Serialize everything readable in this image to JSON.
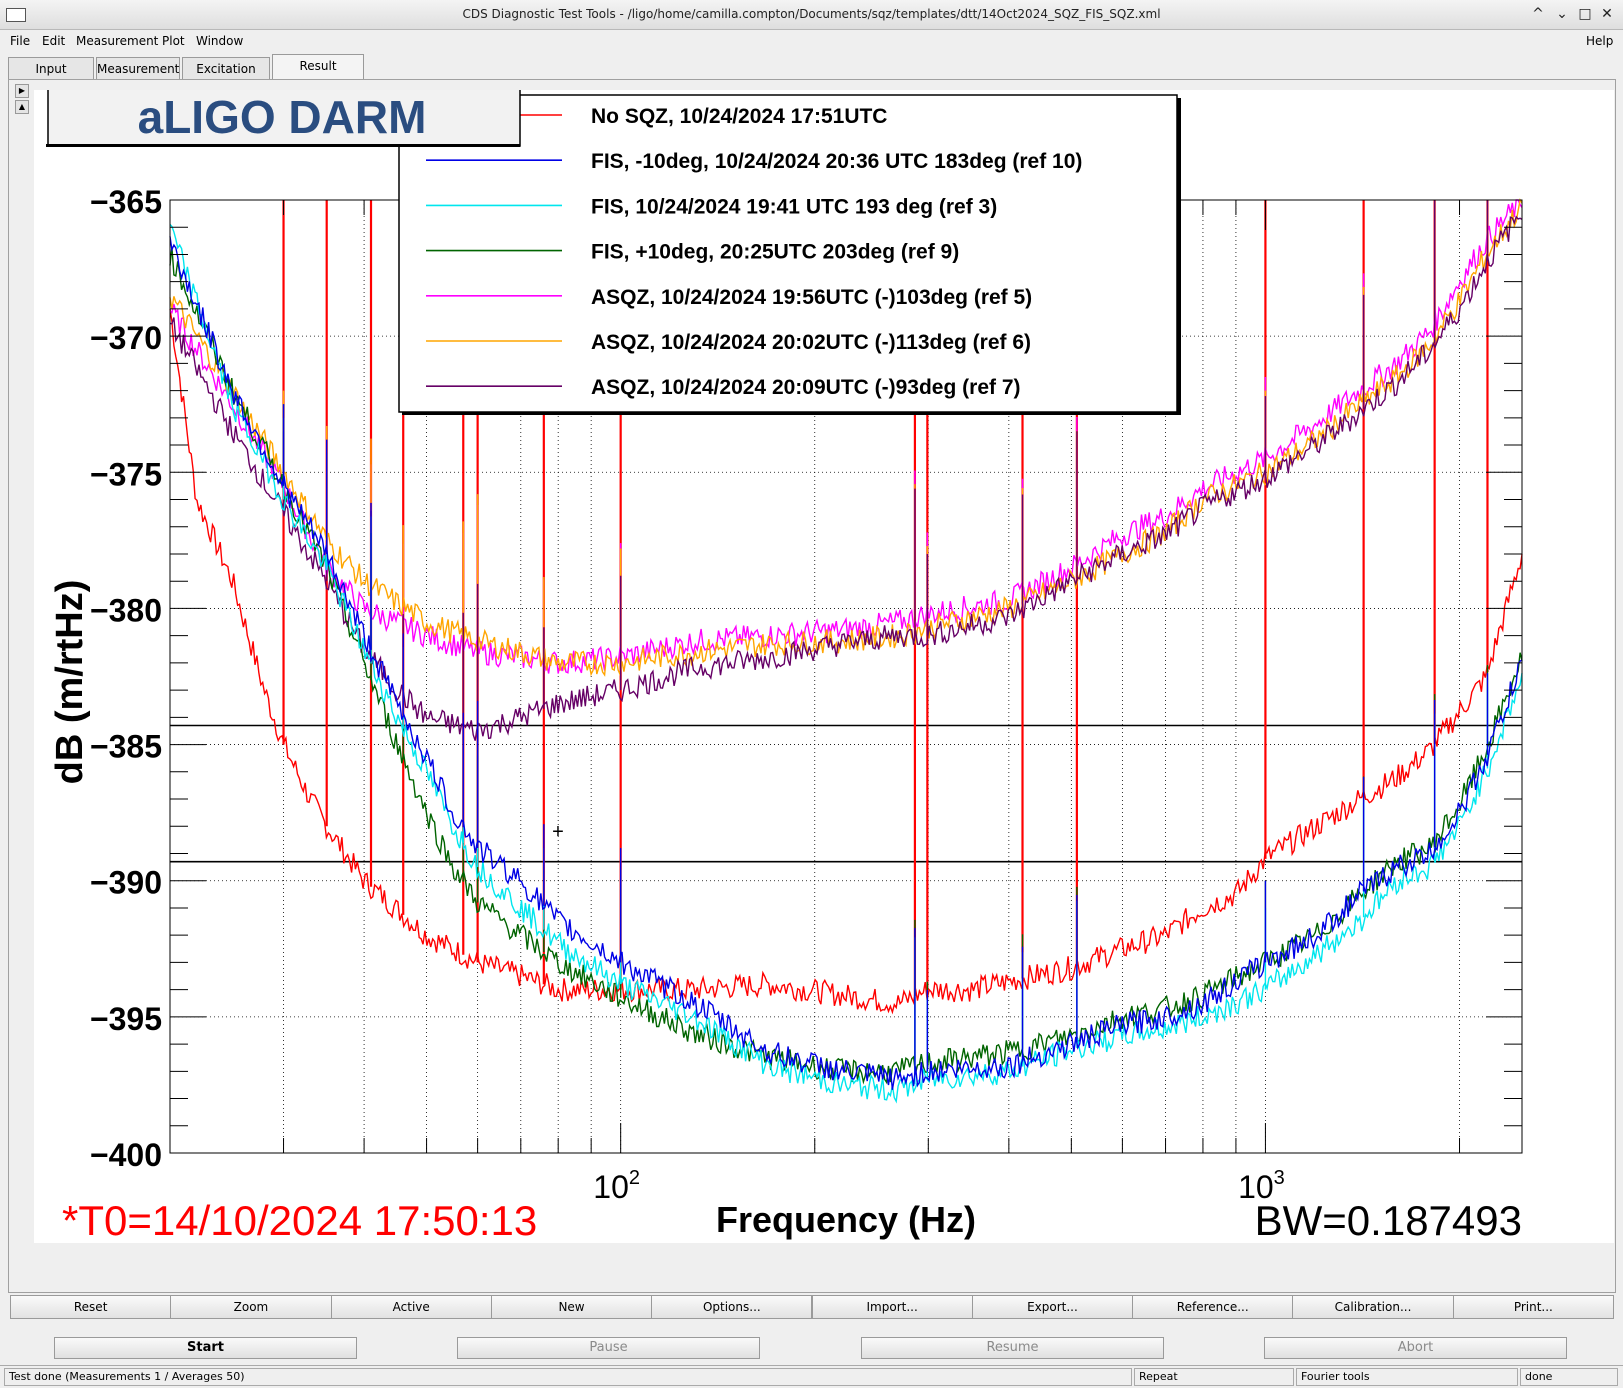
{
  "window": {
    "title": "CDS Diagnostic Test Tools - /ligo/home/camilla.compton/Documents/sqz/templates/dtt/14Oct2024_SQZ_FIS_SQZ.xml",
    "controls": [
      "^",
      "⌄",
      "□",
      "✕"
    ]
  },
  "menu": {
    "file": "File",
    "edit": "Edit",
    "measurement": "Measurement",
    "plot": "Plot",
    "window": "Window",
    "help": "Help"
  },
  "tabs": [
    "Input",
    "Measurement",
    "Excitation",
    "Result"
  ],
  "toolbar": [
    "Reset",
    "Zoom",
    "Active",
    "New",
    "Options...",
    "Import...",
    "Export...",
    "Reference...",
    "Calibration...",
    "Print..."
  ],
  "controls": {
    "start": "Start",
    "pause": "Pause",
    "resume": "Resume",
    "abort": "Abort"
  },
  "status": {
    "message": "Test done (Measurements 1 / Averages 50)",
    "repeat": "Repeat",
    "fourier": "Fourier tools",
    "state": "done"
  },
  "plot": {
    "header": "aLIGO DARM",
    "t0": "*T0=14/10/2024 17:50:13",
    "bw": "BW=0.187493",
    "xlabel": "Frequency (Hz)",
    "ylabel": "dB (m/rtHz)",
    "xtick_base": "10",
    "xtick_exps": [
      "2",
      "3"
    ],
    "ytick_labels": [
      "−365",
      "−370",
      "−375",
      "−380",
      "−385",
      "−390",
      "−395",
      "−400"
    ],
    "cursor_symbol": "+"
  },
  "chart_data": {
    "type": "line",
    "xscale": "log",
    "xlim": [
      20,
      2500
    ],
    "ylim": [
      -400,
      -365
    ],
    "grid": true,
    "legend_position": "top",
    "hlines": [
      -384.3,
      -389.3
    ],
    "series": [
      {
        "name": "No SQZ, 10/24/2024 17:51UTC",
        "color": "#ff0000",
        "points": [
          [
            20,
            -369
          ],
          [
            22,
            -376
          ],
          [
            25,
            -379
          ],
          [
            28,
            -383
          ],
          [
            30,
            -385
          ],
          [
            33,
            -387
          ],
          [
            35,
            -388
          ],
          [
            40,
            -390
          ],
          [
            50,
            -392
          ],
          [
            60,
            -393
          ],
          [
            70,
            -393.5
          ],
          [
            80,
            -394
          ],
          [
            100,
            -394
          ],
          [
            130,
            -394
          ],
          [
            170,
            -393.8
          ],
          [
            220,
            -394.2
          ],
          [
            270,
            -394.5
          ],
          [
            300,
            -394
          ],
          [
            350,
            -394
          ],
          [
            400,
            -393.7
          ],
          [
            500,
            -393.2
          ],
          [
            600,
            -392.5
          ],
          [
            700,
            -392
          ],
          [
            800,
            -391
          ],
          [
            900,
            -390.5
          ],
          [
            1000,
            -389.2
          ],
          [
            1200,
            -388
          ],
          [
            1400,
            -387
          ],
          [
            1600,
            -386.2
          ],
          [
            1800,
            -385.2
          ],
          [
            2000,
            -383.8
          ],
          [
            2200,
            -382.5
          ],
          [
            2500,
            -378
          ]
        ]
      },
      {
        "name": "FIS, -10deg, 10/24/2024 20:36 UTC 183deg (ref 10)",
        "color": "#0000e6",
        "points": [
          [
            20,
            -366.5
          ],
          [
            25,
            -372
          ],
          [
            30,
            -375.5
          ],
          [
            35,
            -378
          ],
          [
            40,
            -381
          ],
          [
            45,
            -383.5
          ],
          [
            50,
            -385.5
          ],
          [
            55,
            -387.5
          ],
          [
            60,
            -388.8
          ],
          [
            70,
            -390
          ],
          [
            80,
            -391.5
          ],
          [
            100,
            -393
          ],
          [
            130,
            -394.5
          ],
          [
            170,
            -396.3
          ],
          [
            220,
            -397
          ],
          [
            270,
            -397.3
          ],
          [
            300,
            -397
          ],
          [
            400,
            -396.8
          ],
          [
            500,
            -396
          ],
          [
            600,
            -395.3
          ],
          [
            700,
            -395
          ],
          [
            800,
            -394.5
          ],
          [
            1000,
            -393
          ],
          [
            1200,
            -392
          ],
          [
            1400,
            -390.5
          ],
          [
            1600,
            -389.5
          ],
          [
            1800,
            -389
          ],
          [
            2000,
            -387.5
          ],
          [
            2200,
            -385.5
          ],
          [
            2500,
            -382
          ]
        ]
      },
      {
        "name": "FIS, 10/24/2024 19:41 UTC 193 deg (ref 3)",
        "color": "#00e6ee",
        "points": [
          [
            20,
            -366
          ],
          [
            25,
            -372.5
          ],
          [
            30,
            -376
          ],
          [
            35,
            -378.5
          ],
          [
            40,
            -381.5
          ],
          [
            45,
            -384
          ],
          [
            50,
            -386
          ],
          [
            55,
            -388
          ],
          [
            60,
            -389.5
          ],
          [
            70,
            -391
          ],
          [
            80,
            -392.3
          ],
          [
            100,
            -393.8
          ],
          [
            130,
            -395
          ],
          [
            170,
            -396.8
          ],
          [
            220,
            -397.5
          ],
          [
            270,
            -397.7
          ],
          [
            300,
            -397.3
          ],
          [
            400,
            -397
          ],
          [
            500,
            -396.2
          ],
          [
            600,
            -395.7
          ],
          [
            700,
            -395.4
          ],
          [
            800,
            -395
          ],
          [
            1000,
            -394
          ],
          [
            1200,
            -392.7
          ],
          [
            1400,
            -391.5
          ],
          [
            1600,
            -390
          ],
          [
            1800,
            -389.5
          ],
          [
            2000,
            -388
          ],
          [
            2200,
            -386
          ],
          [
            2500,
            -382.5
          ]
        ]
      },
      {
        "name": "FIS, +10deg, 20:25UTC 203deg  (ref 9)",
        "color": "#006400",
        "points": [
          [
            20,
            -367
          ],
          [
            25,
            -372
          ],
          [
            30,
            -375.5
          ],
          [
            35,
            -378.5
          ],
          [
            40,
            -382
          ],
          [
            45,
            -385
          ],
          [
            50,
            -387.5
          ],
          [
            55,
            -389.5
          ],
          [
            60,
            -390.8
          ],
          [
            70,
            -392
          ],
          [
            80,
            -393
          ],
          [
            100,
            -394.3
          ],
          [
            130,
            -395.6
          ],
          [
            170,
            -396.5
          ],
          [
            220,
            -397
          ],
          [
            270,
            -397
          ],
          [
            300,
            -396.7
          ],
          [
            400,
            -396.3
          ],
          [
            500,
            -395.7
          ],
          [
            600,
            -395
          ],
          [
            700,
            -394.7
          ],
          [
            800,
            -394.2
          ],
          [
            1000,
            -393
          ],
          [
            1200,
            -392
          ],
          [
            1400,
            -390.5
          ],
          [
            1600,
            -389.3
          ],
          [
            1800,
            -388.8
          ],
          [
            2000,
            -387.2
          ],
          [
            2200,
            -385.2
          ],
          [
            2500,
            -381.8
          ]
        ]
      },
      {
        "name": "ASQZ, 10/24/2024 19:56UTC (-)103deg (ref 5)",
        "color": "#ff00ff",
        "points": [
          [
            20,
            -369
          ],
          [
            25,
            -372.5
          ],
          [
            30,
            -375.5
          ],
          [
            35,
            -378.5
          ],
          [
            40,
            -380
          ],
          [
            50,
            -381
          ],
          [
            60,
            -381.6
          ],
          [
            70,
            -381.8
          ],
          [
            80,
            -382
          ],
          [
            100,
            -381.8
          ],
          [
            130,
            -381.2
          ],
          [
            170,
            -381
          ],
          [
            220,
            -380.8
          ],
          [
            270,
            -380.5
          ],
          [
            300,
            -380.2
          ],
          [
            400,
            -379.7
          ],
          [
            500,
            -378.5
          ],
          [
            600,
            -377.3
          ],
          [
            700,
            -376.6
          ],
          [
            800,
            -375.6
          ],
          [
            1000,
            -374.5
          ],
          [
            1200,
            -373.2
          ],
          [
            1400,
            -372
          ],
          [
            1600,
            -371
          ],
          [
            1800,
            -369.8
          ],
          [
            2000,
            -368
          ],
          [
            2200,
            -366.5
          ],
          [
            2500,
            -365
          ]
        ]
      },
      {
        "name": "ASQZ, 10/24/2024 20:02UTC (-)113deg (ref 6)",
        "color": "#ffa500",
        "points": [
          [
            20,
            -368.5
          ],
          [
            25,
            -372
          ],
          [
            30,
            -375
          ],
          [
            35,
            -377.5
          ],
          [
            40,
            -379
          ],
          [
            50,
            -380.5
          ],
          [
            60,
            -381.2
          ],
          [
            70,
            -381.6
          ],
          [
            80,
            -382
          ],
          [
            100,
            -382
          ],
          [
            130,
            -381.6
          ],
          [
            170,
            -381.3
          ],
          [
            220,
            -381.2
          ],
          [
            270,
            -381
          ],
          [
            300,
            -380.7
          ],
          [
            400,
            -380
          ],
          [
            500,
            -379
          ],
          [
            600,
            -378
          ],
          [
            700,
            -377.2
          ],
          [
            800,
            -376
          ],
          [
            1000,
            -375
          ],
          [
            1200,
            -373.8
          ],
          [
            1400,
            -372.5
          ],
          [
            1600,
            -371.5
          ],
          [
            1800,
            -370.3
          ],
          [
            2000,
            -368.7
          ],
          [
            2200,
            -367
          ],
          [
            2500,
            -365.2
          ]
        ]
      },
      {
        "name": "ASQZ, 10/24/2024 20:09UTC (-)93deg (ref 7)",
        "color": "#660066",
        "points": [
          [
            20,
            -369.5
          ],
          [
            25,
            -373.5
          ],
          [
            30,
            -376.5
          ],
          [
            35,
            -379
          ],
          [
            40,
            -381.5
          ],
          [
            45,
            -383
          ],
          [
            50,
            -384
          ],
          [
            60,
            -384.5
          ],
          [
            70,
            -384
          ],
          [
            80,
            -383.5
          ],
          [
            100,
            -383
          ],
          [
            130,
            -382.2
          ],
          [
            170,
            -381.8
          ],
          [
            220,
            -381.3
          ],
          [
            270,
            -381
          ],
          [
            300,
            -381
          ],
          [
            400,
            -380.3
          ],
          [
            500,
            -379
          ],
          [
            600,
            -378
          ],
          [
            700,
            -377.3
          ],
          [
            800,
            -376.3
          ],
          [
            1000,
            -375.2
          ],
          [
            1200,
            -374
          ],
          [
            1400,
            -372.8
          ],
          [
            1600,
            -371.7
          ],
          [
            1800,
            -370.5
          ],
          [
            2000,
            -369
          ],
          [
            2200,
            -367.3
          ],
          [
            2500,
            -365.4
          ]
        ]
      }
    ],
    "spike_frequencies": [
      30,
      35,
      41,
      46,
      57,
      60,
      76,
      100,
      286,
      299,
      420,
      510,
      1000,
      1420,
      1830,
      2210
    ]
  }
}
